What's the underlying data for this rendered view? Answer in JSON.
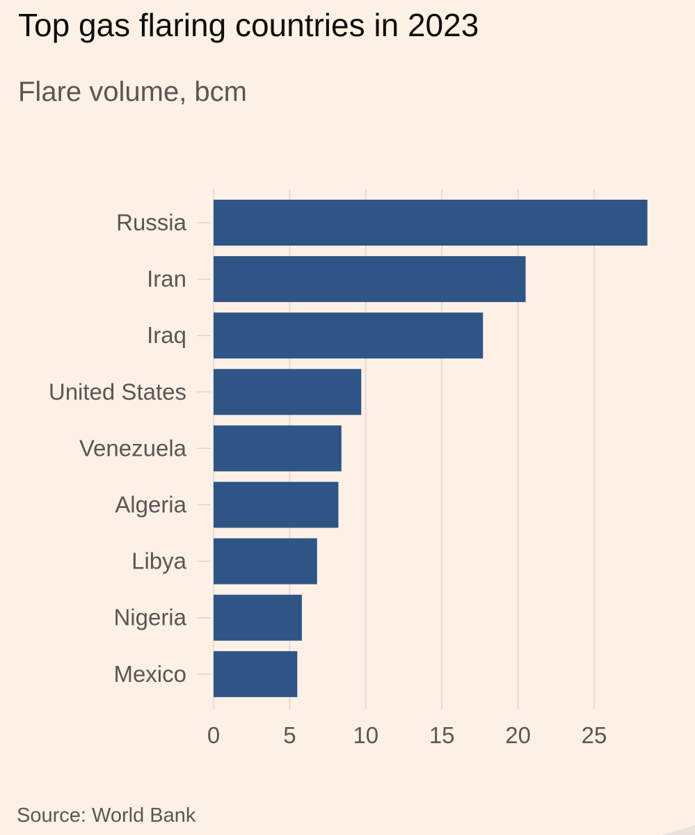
{
  "header": {
    "title": "Top gas flaring countries in 2023",
    "subtitle": "Flare volume, bcm"
  },
  "footer": {
    "source": "Source: World Bank"
  },
  "colors": {
    "background": "#fdf1e6",
    "bar": "#2f5486",
    "gridline": "#ddd7d0",
    "axis_text": "#5a5653",
    "title_text": "#0d0d0d"
  },
  "chart_data": {
    "type": "bar",
    "orientation": "horizontal",
    "title": "Top gas flaring countries in 2023",
    "subtitle": "Flare volume, bcm",
    "categories": [
      "Russia",
      "Iran",
      "Iraq",
      "United States",
      "Venezuela",
      "Algeria",
      "Libya",
      "Nigeria",
      "Mexico"
    ],
    "values": [
      28.5,
      20.5,
      17.7,
      9.7,
      8.4,
      8.2,
      6.8,
      5.8,
      5.5
    ],
    "xlim": [
      0,
      30
    ],
    "xticks": [
      0,
      5,
      10,
      15,
      20,
      25
    ],
    "xlabel": "",
    "ylabel": "",
    "grid": "vertical",
    "legend": "none"
  }
}
